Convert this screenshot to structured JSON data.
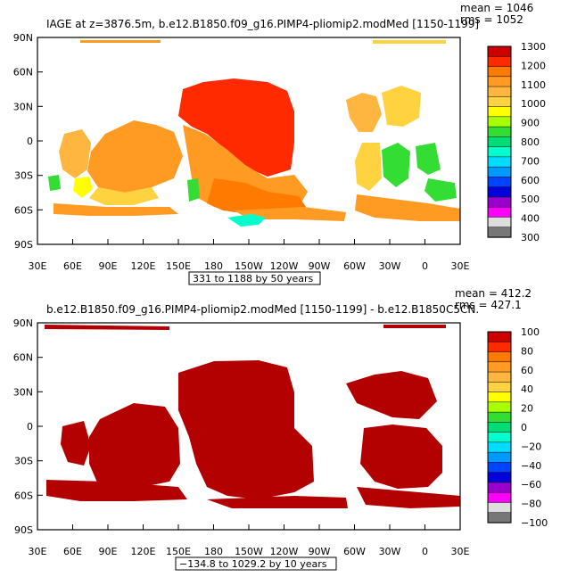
{
  "chart_data": [
    {
      "type": "heatmap",
      "title": "IAGE at z=3876.5m, b.e12.B1850.f09_g16.PIMP4-pliomip2.modMed [1150-1199]",
      "stats": {
        "mean": "mean = 1046",
        "rms": "rms = 1052"
      },
      "x_ticks": [
        "30E",
        "60E",
        "90E",
        "120E",
        "150E",
        "180",
        "150W",
        "120W",
        "90W",
        "60W",
        "30W",
        "0",
        "30E"
      ],
      "y_ticks": [
        "90N",
        "60N",
        "30N",
        "0",
        "30S",
        "60S",
        "90S"
      ],
      "contour_info": "331 to 1188 by 50 years",
      "colorbar": {
        "labels": [
          "1300",
          "1200",
          "1100",
          "1000",
          "900",
          "800",
          "700",
          "600",
          "500",
          "400",
          "300"
        ],
        "colors": [
          "#cd0000",
          "#ff2a00",
          "#ff7a00",
          "#ff9a22",
          "#ffb640",
          "#ffd340",
          "#ffff00",
          "#a8ff00",
          "#33dd33",
          "#00dd77",
          "#00ffcc",
          "#00ddff",
          "#0099ff",
          "#0044ff",
          "#0000dd",
          "#9900cc",
          "#ff00ff",
          "#dddddd",
          "#777777"
        ]
      }
    },
    {
      "type": "heatmap",
      "title": "b.e12.B1850.f09_g16.PIMP4-pliomip2.modMed [1150-1199] - b.e12.B1850C5CN.",
      "stats": {
        "mean": "mean = 412.2",
        "rms": "rms = 427.1"
      },
      "x_ticks": [
        "30E",
        "60E",
        "90E",
        "120E",
        "150E",
        "180",
        "150W",
        "120W",
        "90W",
        "60W",
        "30W",
        "0",
        "30E"
      ],
      "y_ticks": [
        "90N",
        "60N",
        "30N",
        "0",
        "30S",
        "60S",
        "90S"
      ],
      "contour_info": "−134.8 to 1029.2 by 10 years",
      "colorbar": {
        "labels": [
          "100",
          "80",
          "60",
          "40",
          "20",
          "0",
          "−20",
          "−40",
          "−60",
          "−80",
          "−100"
        ],
        "colors": [
          "#cd0000",
          "#ff2a00",
          "#ff7a00",
          "#ff9a22",
          "#ffb640",
          "#ffd340",
          "#ffff00",
          "#a8ff00",
          "#33dd33",
          "#00dd77",
          "#00ffcc",
          "#00ddff",
          "#0099ff",
          "#0044ff",
          "#0000dd",
          "#9900cc",
          "#ff00ff",
          "#dddddd",
          "#777777"
        ]
      }
    }
  ]
}
